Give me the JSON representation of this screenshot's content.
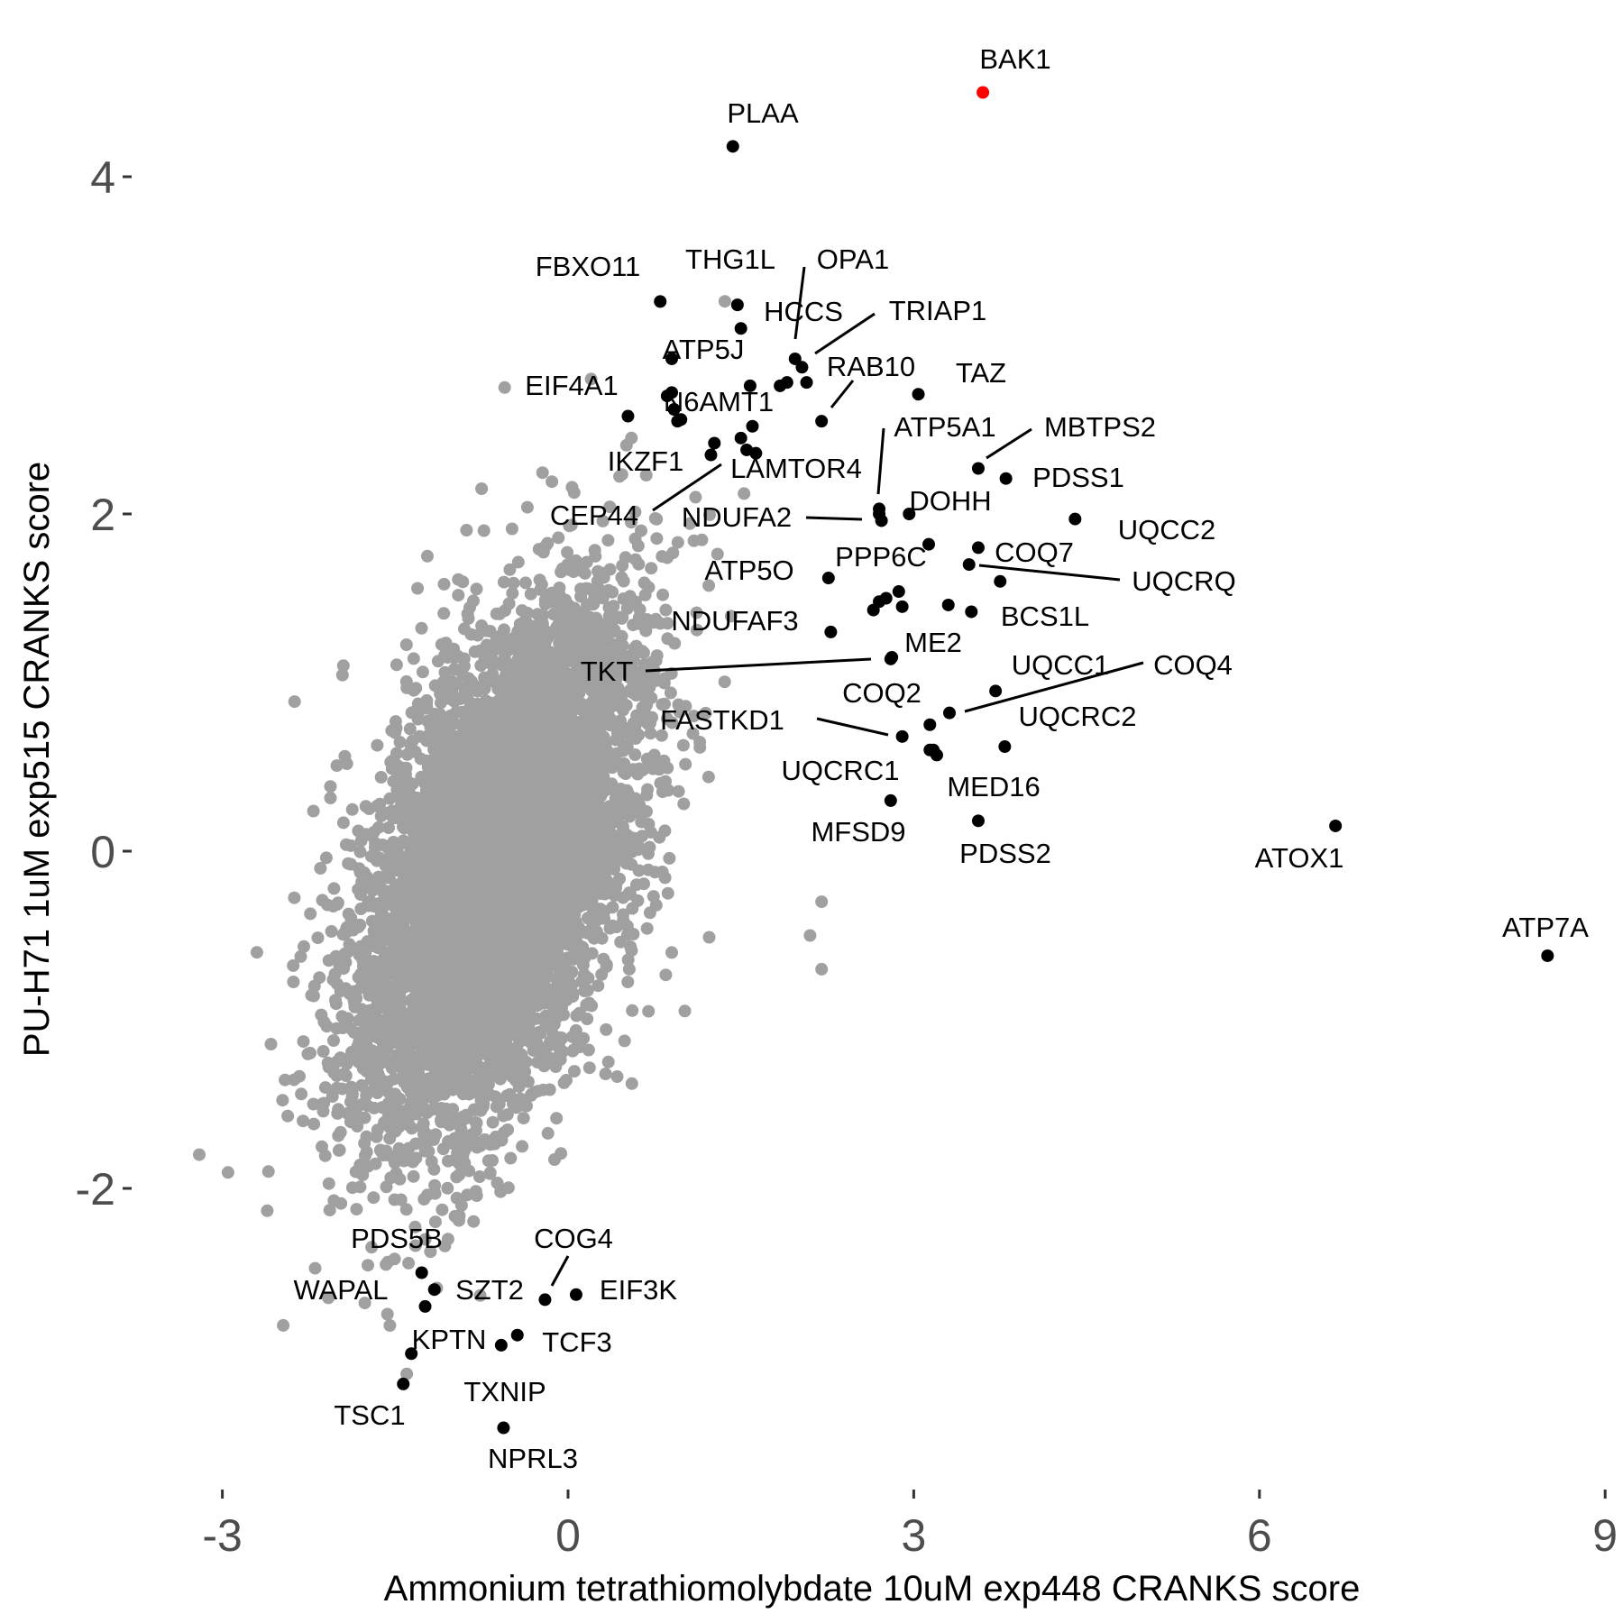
{
  "chart_data": {
    "type": "scatter",
    "xlabel": "Ammonium tetrathiomolybdate 10uM exp448 CRANKS score",
    "ylabel": "PU-H71 1uM exp515 CRANKS score",
    "xlim": [
      -3.5,
      9.0
    ],
    "ylim": [
      -3.6,
      4.6
    ],
    "xticks": [
      -3,
      0,
      3,
      6,
      9
    ],
    "yticks": [
      -2,
      0,
      2,
      4
    ],
    "grid": false,
    "legend": "none",
    "colors": {
      "background_points": "#a0a0a0",
      "highlight_points": "#000000",
      "top_hit": "#ff0000"
    },
    "background": {
      "description_note": "",
      "cloud_center": [
        -0.6,
        -0.1
      ],
      "sd": [
        0.6,
        0.78
      ],
      "correlation": 0.5,
      "count": 6500
    },
    "highlighted": [
      {
        "label": "BAK1",
        "x": 3.6,
        "y": 4.5,
        "color": "#ff0000"
      },
      {
        "label": "PLAA",
        "x": 1.43,
        "y": 4.18
      },
      {
        "label": "FBXO11",
        "x": 0.8,
        "y": 3.26
      },
      {
        "label": "THG1L",
        "x": 1.47,
        "y": 3.24
      },
      {
        "label": "OPA1",
        "x": 1.97,
        "y": 2.92
      },
      {
        "label": "HCCS",
        "x": 1.5,
        "y": 3.1
      },
      {
        "label": "TRIAP1",
        "x": 2.03,
        "y": 2.87
      },
      {
        "label": "ATP5J",
        "x": 0.9,
        "y": 2.92
      },
      {
        "label": "EIF4A1",
        "x": 0.52,
        "y": 2.58
      },
      {
        "label": "RAB10",
        "x": 2.2,
        "y": 2.55
      },
      {
        "label": "TAZ",
        "x": 3.04,
        "y": 2.71
      },
      {
        "label": "N6AMT1",
        "x": 0.95,
        "y": 2.55
      },
      {
        "label": "ATP5A1",
        "x": 2.7,
        "y": 2.03
      },
      {
        "label": "MBTPS2",
        "x": 3.56,
        "y": 2.27
      },
      {
        "label": "IKZF1",
        "x": 1.24,
        "y": 2.35
      },
      {
        "label": "LAMTOR4",
        "x": 1.63,
        "y": 2.36
      },
      {
        "label": "PDSS1",
        "x": 3.8,
        "y": 2.21
      },
      {
        "label": "CEP44",
        "x": 1.27,
        "y": 2.42
      },
      {
        "label": "DOHH",
        "x": 2.96,
        "y": 2.0
      },
      {
        "label": "NDUFA2",
        "x": 2.72,
        "y": 1.96
      },
      {
        "label": "UQCC2",
        "x": 4.4,
        "y": 1.97
      },
      {
        "label": "PPP6C",
        "x": 3.13,
        "y": 1.82
      },
      {
        "label": "COQ7",
        "x": 3.56,
        "y": 1.8
      },
      {
        "label": "ATP5O",
        "x": 2.26,
        "y": 1.62
      },
      {
        "label": "UQCRQ",
        "x": 3.48,
        "y": 1.7
      },
      {
        "label": "BCS1L",
        "x": 3.75,
        "y": 1.6
      },
      {
        "label": "NDUFAF3",
        "x": 2.28,
        "y": 1.3
      },
      {
        "label": "ME2",
        "x": 2.81,
        "y": 1.15
      },
      {
        "label": "TKT",
        "x": 2.8,
        "y": 1.14
      },
      {
        "label": "UQCC1",
        "x": 3.71,
        "y": 0.95
      },
      {
        "label": "COQ4",
        "x": 3.31,
        "y": 0.82
      },
      {
        "label": "COQ2",
        "x": 3.14,
        "y": 0.75
      },
      {
        "label": "FASTKD1",
        "x": 2.9,
        "y": 0.68
      },
      {
        "label": "UQCRC2",
        "x": 3.79,
        "y": 0.62
      },
      {
        "label": "UQCRC1",
        "x": 3.14,
        "y": 0.6
      },
      {
        "label": "MED16",
        "x": 3.2,
        "y": 0.57
      },
      {
        "label": "MFSD9",
        "x": 2.8,
        "y": 0.3
      },
      {
        "label": "PDSS2",
        "x": 3.56,
        "y": 0.18
      },
      {
        "label": "ATOX1",
        "x": 6.66,
        "y": 0.15
      },
      {
        "label": "ATP7A",
        "x": 8.5,
        "y": -0.62
      },
      {
        "label": "PDS5B",
        "x": -1.27,
        "y": -2.5
      },
      {
        "label": "COG4",
        "x": -0.2,
        "y": -2.66
      },
      {
        "label": "WAPAL",
        "x": -1.16,
        "y": -2.6
      },
      {
        "label": "SZT2",
        "x": -1.24,
        "y": -2.7
      },
      {
        "label": "EIF3K",
        "x": 0.07,
        "y": -2.63
      },
      {
        "label": "KPTN",
        "x": -1.36,
        "y": -2.98
      },
      {
        "label": "TCF3",
        "x": -0.44,
        "y": -2.87
      },
      {
        "label": "TXNIP",
        "x": -0.58,
        "y": -2.93
      },
      {
        "label": "TSC1",
        "x": -1.43,
        "y": -3.16
      },
      {
        "label": "NPRL3",
        "x": -0.56,
        "y": -3.42
      }
    ],
    "extra_points": [
      {
        "x": 0.9,
        "y": 2.72
      },
      {
        "x": 0.86,
        "y": 2.7
      },
      {
        "x": 0.92,
        "y": 2.62
      },
      {
        "x": 0.98,
        "y": 2.56
      },
      {
        "x": 1.5,
        "y": 2.45
      },
      {
        "x": 1.6,
        "y": 2.52
      },
      {
        "x": 1.58,
        "y": 2.76
      },
      {
        "x": 1.9,
        "y": 2.78
      },
      {
        "x": 1.84,
        "y": 2.76
      },
      {
        "x": 2.07,
        "y": 2.78
      },
      {
        "x": 1.55,
        "y": 2.38
      },
      {
        "x": 2.7,
        "y": 2.0
      },
      {
        "x": 2.76,
        "y": 1.5
      },
      {
        "x": 2.87,
        "y": 1.54
      },
      {
        "x": 2.9,
        "y": 1.45
      },
      {
        "x": 2.65,
        "y": 1.43
      },
      {
        "x": 2.7,
        "y": 1.48
      },
      {
        "x": 3.3,
        "y": 1.46
      },
      {
        "x": 3.5,
        "y": 1.42
      },
      {
        "x": 3.17,
        "y": 0.6
      }
    ]
  }
}
